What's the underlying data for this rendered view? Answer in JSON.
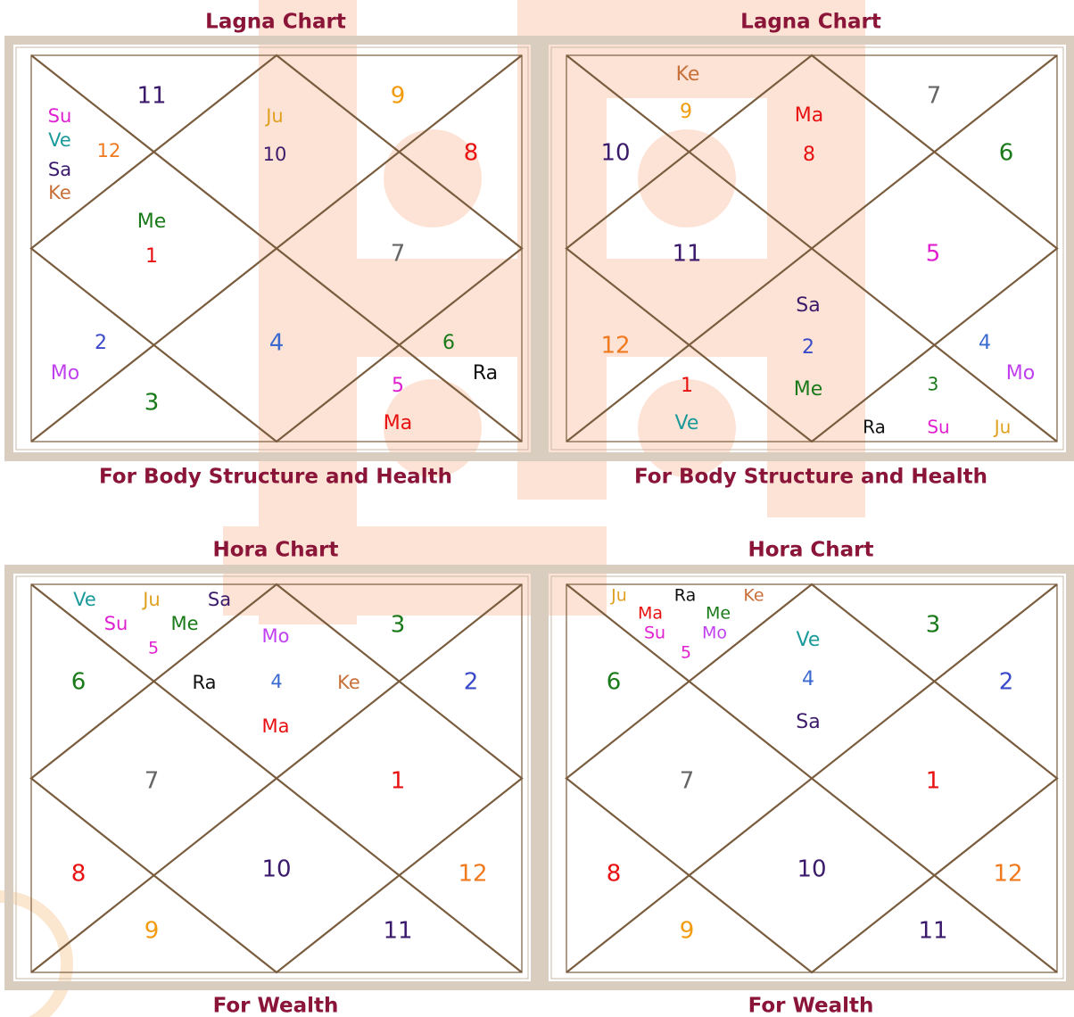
{
  "charts": [
    {
      "title": "Lagna Chart",
      "subtitle": "For Body Structure and Health",
      "items": [
        {
          "text": "11",
          "color": "#3b1a6b"
        },
        {
          "text": "9",
          "color": "#f29b0c"
        },
        {
          "text": "Su",
          "color": "#e020d0"
        },
        {
          "text": "Ve",
          "color": "#1a9a9a"
        },
        {
          "text": "Sa",
          "color": "#3b1a6b"
        },
        {
          "text": "Ke",
          "color": "#c8703a"
        },
        {
          "text": "12",
          "color": "#f07a20"
        },
        {
          "text": "Ju",
          "color": "#e0a020"
        },
        {
          "text": "10",
          "color": "#3b1a6b"
        },
        {
          "text": "8",
          "color": "#e81010"
        },
        {
          "text": "Me",
          "color": "#1a7a1a"
        },
        {
          "text": "1",
          "color": "#e81010"
        },
        {
          "text": "7",
          "color": "#666666"
        },
        {
          "text": "2",
          "color": "#3a4ac8"
        },
        {
          "text": "Mo",
          "color": "#c040f0"
        },
        {
          "text": "4",
          "color": "#3a6ad0"
        },
        {
          "text": "6",
          "color": "#1a7a1a"
        },
        {
          "text": "Ra",
          "color": "#111111"
        },
        {
          "text": "5",
          "color": "#e020d0"
        },
        {
          "text": "Ma",
          "color": "#e81010"
        },
        {
          "text": "3",
          "color": "#1a7a1a"
        }
      ]
    },
    {
      "title": "Lagna Chart",
      "subtitle": "For Body Structure and Health",
      "items": [
        {
          "text": "Ke",
          "color": "#c8703a"
        },
        {
          "text": "9",
          "color": "#f29b0c"
        },
        {
          "text": "Ma",
          "color": "#e81010"
        },
        {
          "text": "8",
          "color": "#e81010"
        },
        {
          "text": "7",
          "color": "#666666"
        },
        {
          "text": "10",
          "color": "#3b1a6b"
        },
        {
          "text": "6",
          "color": "#1a7a1a"
        },
        {
          "text": "11",
          "color": "#3b1a6b"
        },
        {
          "text": "5",
          "color": "#e020d0"
        },
        {
          "text": "Sa",
          "color": "#3b1a6b"
        },
        {
          "text": "2",
          "color": "#3a4ac8"
        },
        {
          "text": "Me",
          "color": "#1a7a1a"
        },
        {
          "text": "12",
          "color": "#f07a20"
        },
        {
          "text": "4",
          "color": "#3a6ad0"
        },
        {
          "text": "Mo",
          "color": "#c040f0"
        },
        {
          "text": "3",
          "color": "#1a7a1a"
        },
        {
          "text": "1",
          "color": "#e81010"
        },
        {
          "text": "Ve",
          "color": "#1a9a9a"
        },
        {
          "text": "Ra",
          "color": "#111111"
        },
        {
          "text": "Su",
          "color": "#e020d0"
        },
        {
          "text": "Ju",
          "color": "#e0a020"
        }
      ]
    },
    {
      "title": "Hora Chart",
      "subtitle": "For Wealth",
      "items": [
        {
          "text": "Ve",
          "color": "#1a9a9a"
        },
        {
          "text": "Ju",
          "color": "#e0a020"
        },
        {
          "text": "Sa",
          "color": "#3b1a6b"
        },
        {
          "text": "Su",
          "color": "#e020d0"
        },
        {
          "text": "Me",
          "color": "#1a7a1a"
        },
        {
          "text": "5",
          "color": "#e020d0"
        },
        {
          "text": "Mo",
          "color": "#c040f0"
        },
        {
          "text": "3",
          "color": "#1a7a1a"
        },
        {
          "text": "6",
          "color": "#1a7a1a"
        },
        {
          "text": "Ra",
          "color": "#111111"
        },
        {
          "text": "4",
          "color": "#3a6ad0"
        },
        {
          "text": "Ke",
          "color": "#c8703a"
        },
        {
          "text": "2",
          "color": "#3a4ac8"
        },
        {
          "text": "Ma",
          "color": "#e81010"
        },
        {
          "text": "7",
          "color": "#666666"
        },
        {
          "text": "1",
          "color": "#e81010"
        },
        {
          "text": "8",
          "color": "#e81010"
        },
        {
          "text": "10",
          "color": "#3b1a6b"
        },
        {
          "text": "12",
          "color": "#f07a20"
        },
        {
          "text": "9",
          "color": "#f29b0c"
        },
        {
          "text": "11",
          "color": "#3b1a6b"
        }
      ]
    },
    {
      "title": "Hora Chart",
      "subtitle": "For Wealth",
      "items": [
        {
          "text": "Ju",
          "color": "#e0a020"
        },
        {
          "text": "Ra",
          "color": "#111111"
        },
        {
          "text": "Ke",
          "color": "#c8703a"
        },
        {
          "text": "Ma",
          "color": "#e81010"
        },
        {
          "text": "Me",
          "color": "#1a7a1a"
        },
        {
          "text": "Su",
          "color": "#e020d0"
        },
        {
          "text": "Mo",
          "color": "#c040f0"
        },
        {
          "text": "5",
          "color": "#e020d0"
        },
        {
          "text": "Ve",
          "color": "#1a9a9a"
        },
        {
          "text": "3",
          "color": "#1a7a1a"
        },
        {
          "text": "6",
          "color": "#1a7a1a"
        },
        {
          "text": "4",
          "color": "#3a6ad0"
        },
        {
          "text": "2",
          "color": "#3a4ac8"
        },
        {
          "text": "Sa",
          "color": "#3b1a6b"
        },
        {
          "text": "7",
          "color": "#666666"
        },
        {
          "text": "1",
          "color": "#e81010"
        },
        {
          "text": "8",
          "color": "#e81010"
        },
        {
          "text": "10",
          "color": "#3b1a6b"
        },
        {
          "text": "12",
          "color": "#f07a20"
        },
        {
          "text": "9",
          "color": "#f29b0c"
        },
        {
          "text": "11",
          "color": "#3b1a6b"
        }
      ]
    }
  ]
}
